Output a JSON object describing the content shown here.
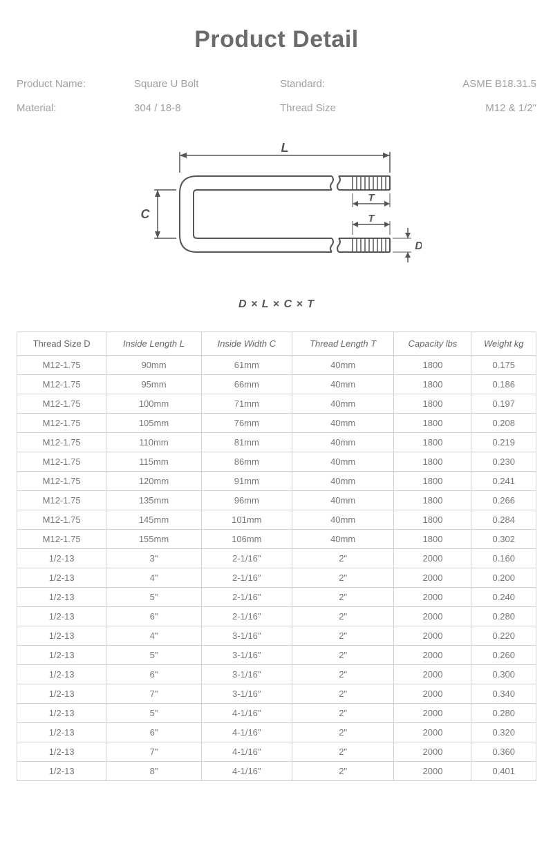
{
  "title": "Product Detail",
  "info": {
    "productNameLabel": "Product Name:",
    "productNameValue": "Square U Bolt",
    "standardLabel": "Standard:",
    "standardValue": "ASME B18.31.5",
    "materialLabel": "Material:",
    "materialValue": "304 / 18-8",
    "threadSizeLabel": "Thread Size",
    "threadSizeValue": "M12 & 1/2\""
  },
  "diagram": {
    "labels": {
      "L": "L",
      "C": "C",
      "T": "T",
      "D": "D"
    },
    "formula": "D × L × C × T",
    "colors": {
      "stroke": "#555555",
      "fill": "#ffffff"
    }
  },
  "table": {
    "columns": [
      "Thread Size D",
      "Inside Length L",
      "Inside Width C",
      "Thread Length T",
      "Capacity lbs",
      "Weight kg"
    ],
    "rows": [
      [
        "M12-1.75",
        "90mm",
        "61mm",
        "40mm",
        "1800",
        "0.175"
      ],
      [
        "M12-1.75",
        "95mm",
        "66mm",
        "40mm",
        "1800",
        "0.186"
      ],
      [
        "M12-1.75",
        "100mm",
        "71mm",
        "40mm",
        "1800",
        "0.197"
      ],
      [
        "M12-1.75",
        "105mm",
        "76mm",
        "40mm",
        "1800",
        "0.208"
      ],
      [
        "M12-1.75",
        "110mm",
        "81mm",
        "40mm",
        "1800",
        "0.219"
      ],
      [
        "M12-1.75",
        "115mm",
        "86mm",
        "40mm",
        "1800",
        "0.230"
      ],
      [
        "M12-1.75",
        "120mm",
        "91mm",
        "40mm",
        "1800",
        "0.241"
      ],
      [
        "M12-1.75",
        "135mm",
        "96mm",
        "40mm",
        "1800",
        "0.266"
      ],
      [
        "M12-1.75",
        "145mm",
        "101mm",
        "40mm",
        "1800",
        "0.284"
      ],
      [
        "M12-1.75",
        "155mm",
        "106mm",
        "40mm",
        "1800",
        "0.302"
      ],
      [
        "1/2-13",
        "3\"",
        "2-1/16\"",
        "2\"",
        "2000",
        "0.160"
      ],
      [
        "1/2-13",
        "4\"",
        "2-1/16\"",
        "2\"",
        "2000",
        "0.200"
      ],
      [
        "1/2-13",
        "5\"",
        "2-1/16\"",
        "2\"",
        "2000",
        "0.240"
      ],
      [
        "1/2-13",
        "6\"",
        "2-1/16\"",
        "2\"",
        "2000",
        "0.280"
      ],
      [
        "1/2-13",
        "4\"",
        "3-1/16\"",
        "2\"",
        "2000",
        "0.220"
      ],
      [
        "1/2-13",
        "5\"",
        "3-1/16\"",
        "2\"",
        "2000",
        "0.260"
      ],
      [
        "1/2-13",
        "6\"",
        "3-1/16\"",
        "2\"",
        "2000",
        "0.300"
      ],
      [
        "1/2-13",
        "7\"",
        "3-1/16\"",
        "2\"",
        "2000",
        "0.340"
      ],
      [
        "1/2-13",
        "5\"",
        "4-1/16\"",
        "2\"",
        "2000",
        "0.280"
      ],
      [
        "1/2-13",
        "6\"",
        "4-1/16\"",
        "2\"",
        "2000",
        "0.320"
      ],
      [
        "1/2-13",
        "7\"",
        "4-1/16\"",
        "2\"",
        "2000",
        "0.360"
      ],
      [
        "1/2-13",
        "8\"",
        "4-1/16\"",
        "2\"",
        "2000",
        "0.401"
      ]
    ]
  },
  "style": {
    "titleColor": "#6b6b6b",
    "labelColor": "#a0a0a0",
    "borderColor": "#cfcfcf",
    "cellTextColor": "#777777",
    "fontSizeTitle": 34,
    "fontSizeInfo": 15,
    "fontSizeTable": 13
  }
}
